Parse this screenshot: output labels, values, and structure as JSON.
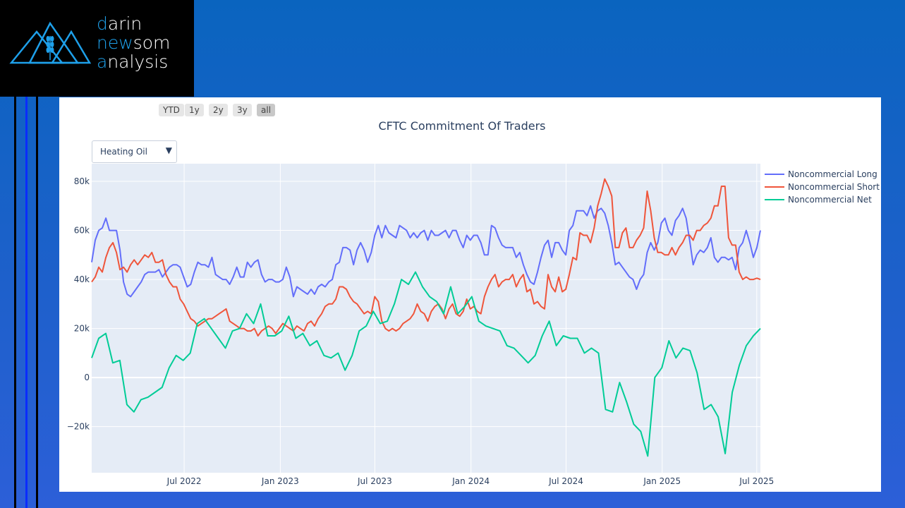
{
  "logo": {
    "line1_first": "d",
    "line1_rest": "arin",
    "line2_first": "n",
    "line2_mid": "ew",
    "line2_rest": "som",
    "line3_first": "a",
    "line3_rest": "nalysis"
  },
  "range_selector": [
    {
      "label": "YTD",
      "active": false
    },
    {
      "label": "1y",
      "active": false
    },
    {
      "label": "2y",
      "active": false
    },
    {
      "label": "3y",
      "active": false
    },
    {
      "label": "all",
      "active": true
    }
  ],
  "dropdown": {
    "selected": "Heating Oil",
    "arrow": "▼"
  },
  "chart_data": {
    "type": "line",
    "title": "CFTC Commitment Of Traders",
    "xlabel": "",
    "ylabel": "",
    "xrange": [
      "2022-01-05",
      "2025-07-08"
    ],
    "ylim": [
      -38800,
      87200
    ],
    "grid": true,
    "legend_position": "top-right",
    "x_tick_labels": [
      {
        "date": "2022-07-01",
        "label": "Jul 2022"
      },
      {
        "date": "2023-01-01",
        "label": "Jan 2023"
      },
      {
        "date": "2023-07-01",
        "label": "Jul 2023"
      },
      {
        "date": "2024-01-01",
        "label": "Jan 2024"
      },
      {
        "date": "2024-07-01",
        "label": "Jul 2024"
      },
      {
        "date": "2025-01-01",
        "label": "Jan 2025"
      },
      {
        "date": "2025-07-01",
        "label": "Jul 2025"
      }
    ],
    "y_ticks": [
      {
        "value": -20000,
        "label": "−20k"
      },
      {
        "value": 0,
        "label": "0"
      },
      {
        "value": 20000,
        "label": "20k"
      },
      {
        "value": 40000,
        "label": "40k"
      },
      {
        "value": 60000,
        "label": "60k"
      },
      {
        "value": 80000,
        "label": "80k"
      }
    ],
    "series": [
      {
        "name": "Noncommercial Long",
        "color": "#636efa",
        "unit": "k",
        "values": [
          47,
          56,
          60,
          61,
          65,
          60,
          60,
          60,
          52,
          39,
          34,
          33,
          35,
          37,
          39,
          42,
          43,
          43,
          43,
          44,
          41,
          43,
          45,
          46,
          46,
          45,
          41,
          37,
          38,
          43,
          47,
          46,
          46,
          45,
          49,
          42,
          41,
          40,
          40,
          38,
          41,
          45,
          41,
          41,
          47,
          45,
          47,
          48,
          42,
          39,
          40,
          40,
          39,
          39,
          40,
          45,
          41,
          33,
          37,
          36,
          35,
          34,
          36,
          34,
          37,
          38,
          37,
          39,
          40,
          46,
          47,
          53,
          53,
          52,
          46,
          52,
          55,
          52,
          47,
          51,
          58,
          62,
          57,
          62,
          59,
          58,
          57,
          62,
          61,
          60,
          57,
          59,
          57,
          59,
          60,
          56,
          60,
          58,
          58,
          59,
          60,
          57,
          60,
          60,
          56,
          53,
          58,
          56,
          58,
          58,
          55,
          50,
          50,
          62,
          61,
          57,
          54,
          53,
          53,
          53,
          49,
          51,
          46,
          42,
          39,
          38,
          43,
          49,
          54,
          56,
          49,
          55,
          55,
          52,
          50,
          60,
          62,
          68,
          68,
          68,
          66,
          70,
          65,
          68,
          69,
          67,
          62,
          55,
          46,
          47,
          45,
          43,
          41,
          40,
          36,
          40,
          42,
          51,
          55,
          52,
          55,
          63,
          65,
          60,
          58,
          64,
          66,
          69,
          65,
          56,
          46,
          50,
          52,
          51,
          53,
          57,
          49,
          47,
          49,
          49,
          48,
          49,
          44,
          53,
          55,
          60,
          55,
          49,
          53,
          60
        ]
      },
      {
        "name": "Noncommercial Short",
        "color": "#ef553b",
        "unit": "k",
        "values": [
          39,
          41,
          45,
          43,
          49,
          53,
          55,
          51,
          44,
          45,
          43,
          46,
          48,
          46,
          48,
          50,
          49,
          51,
          47,
          47,
          48,
          42,
          39,
          37,
          37,
          32,
          30,
          27,
          24,
          23,
          21,
          22,
          23,
          24,
          24,
          25,
          26,
          27,
          28,
          23,
          22,
          21,
          20,
          20,
          19,
          19,
          20,
          17,
          19,
          20,
          21,
          20,
          18,
          20,
          22,
          21,
          20,
          19,
          21,
          20,
          19,
          22,
          23,
          21,
          24,
          26,
          29,
          30,
          30,
          32,
          37,
          37,
          36,
          33,
          31,
          30,
          28,
          26,
          27,
          26,
          33,
          31,
          23,
          20,
          19,
          20,
          19,
          20,
          22,
          23,
          24,
          26,
          30,
          27,
          26,
          23,
          27,
          29,
          30,
          28,
          24,
          28,
          30,
          26,
          25,
          27,
          32,
          28,
          29,
          27,
          26,
          33,
          37,
          40,
          42,
          37,
          39,
          40,
          40,
          42,
          37,
          40,
          42,
          35,
          36,
          30,
          31,
          29,
          28,
          42,
          37,
          35,
          41,
          35,
          36,
          42,
          49,
          48,
          59,
          58,
          58,
          55,
          61,
          70,
          75,
          81,
          78,
          74,
          53,
          53,
          59,
          61,
          53,
          53,
          56,
          58,
          61,
          76,
          68,
          57,
          51,
          51,
          50,
          50,
          53,
          50,
          53,
          55,
          58,
          58,
          56,
          60,
          60,
          62,
          63,
          65,
          70,
          70,
          78,
          78,
          57,
          54,
          54,
          43,
          40,
          41,
          40,
          40,
          40.5,
          40
        ]
      },
      {
        "name": "Noncommercial Net",
        "color": "#00cc96",
        "unit": "k",
        "values": [
          8,
          16,
          18,
          6,
          7,
          -11,
          -14,
          -9,
          -8,
          -6,
          -4,
          4,
          9,
          7,
          10,
          22,
          24,
          20,
          16,
          12,
          19,
          20,
          26,
          22,
          30,
          17,
          17,
          19,
          25,
          16,
          18,
          13,
          15,
          9,
          8,
          10,
          3,
          9,
          19,
          21,
          27,
          22,
          23,
          30,
          40,
          38,
          43,
          37,
          33,
          31,
          26,
          37,
          26,
          29,
          33,
          23,
          21,
          20,
          19,
          13,
          12,
          9,
          6,
          9,
          17,
          23,
          13,
          17,
          16,
          16,
          10,
          12,
          10,
          -13,
          -14,
          -2,
          -10,
          -19,
          -22,
          -32,
          0,
          4,
          15,
          8,
          12,
          11,
          2,
          -13,
          -11,
          -16,
          -31,
          -6,
          5,
          13,
          17,
          20
        ]
      }
    ]
  }
}
